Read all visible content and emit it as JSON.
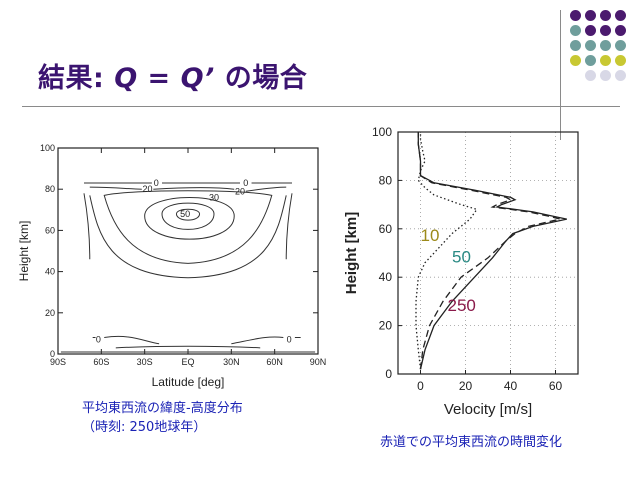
{
  "slide": {
    "title_prefix": "結果: ",
    "title_q1": "Q",
    "title_eq": " = ",
    "title_q2": "Q’",
    "title_suffix": " の場合",
    "caption_left_line1": "平均東西流の緯度-高度分布",
    "caption_left_line2": "（時刻: 250地球年）",
    "caption_right": "赤道での平均東西流の時間変化",
    "colors": {
      "title": "#3b1470",
      "caption": "#1a22b5",
      "dot_purple": "#4b1a6e",
      "dot_teal": "#6f9e9c",
      "dot_yellow": "#c8c832",
      "dot_light": "#d8d8e6",
      "label_10": "#9c8a1a",
      "label_50": "#2a8a84",
      "label_250": "#8a1a4a"
    }
  },
  "chart_data": [
    {
      "type": "contour",
      "xlabel": "Latitude [deg]",
      "ylabel": "Height [km]",
      "xlim": [
        -90,
        90
      ],
      "ylim": [
        0,
        100
      ],
      "x_ticks": [
        {
          "v": -90,
          "label": "90S"
        },
        {
          "v": -60,
          "label": "60S"
        },
        {
          "v": -30,
          "label": "30S"
        },
        {
          "v": 0,
          "label": "EQ"
        },
        {
          "v": 30,
          "label": "30N"
        },
        {
          "v": 60,
          "label": "60N"
        },
        {
          "v": 90,
          "label": "90N"
        }
      ],
      "y_ticks": [
        0,
        20,
        40,
        60,
        80,
        100
      ],
      "contour_labels": [
        {
          "text": "0",
          "lat": -22,
          "z": 83
        },
        {
          "text": "0",
          "lat": 40,
          "z": 83
        },
        {
          "text": "20",
          "lat": -28,
          "z": 80
        },
        {
          "text": "20",
          "lat": 36,
          "z": 79
        },
        {
          "text": "30",
          "lat": 18,
          "z": 76
        },
        {
          "text": "50",
          "lat": -2,
          "z": 68
        },
        {
          "text": "0",
          "lat": -62,
          "z": 7
        },
        {
          "text": "0",
          "lat": 70,
          "z": 7
        }
      ]
    },
    {
      "type": "line",
      "xlabel": "Velocity [m/s]",
      "ylabel": "Height [km]",
      "xlim": [
        -10,
        70
      ],
      "ylim": [
        0,
        100
      ],
      "x_ticks": [
        0,
        20,
        40,
        60
      ],
      "y_ticks": [
        0,
        20,
        40,
        60,
        80,
        100
      ],
      "series_labels": [
        {
          "text": "10",
          "x": 0,
          "y": 55
        },
        {
          "text": "50",
          "x": 14,
          "y": 46
        },
        {
          "text": "250",
          "x": 12,
          "y": 26
        }
      ],
      "series": [
        {
          "name": "10",
          "style": "dotted",
          "points": [
            [
              0,
              2
            ],
            [
              -1,
              10
            ],
            [
              -2,
              20
            ],
            [
              -2,
              30
            ],
            [
              -1,
              40
            ],
            [
              2,
              46
            ],
            [
              8,
              52
            ],
            [
              14,
              58
            ],
            [
              22,
              64
            ],
            [
              25,
              68
            ],
            [
              18,
              70
            ],
            [
              12,
              72
            ],
            [
              6,
              74
            ],
            [
              2,
              77
            ],
            [
              -1,
              80
            ],
            [
              0,
              84
            ],
            [
              2,
              88
            ],
            [
              1,
              92
            ],
            [
              0,
              97
            ],
            [
              0,
              100
            ]
          ]
        },
        {
          "name": "50",
          "style": "dashed",
          "points": [
            [
              0,
              2
            ],
            [
              1,
              10
            ],
            [
              4,
              20
            ],
            [
              10,
              30
            ],
            [
              18,
              40
            ],
            [
              30,
              48
            ],
            [
              38,
              55
            ],
            [
              42,
              58
            ],
            [
              48,
              61
            ],
            [
              62,
              64
            ],
            [
              58,
              65
            ],
            [
              48,
              67
            ],
            [
              40,
              68
            ],
            [
              32,
              69
            ],
            [
              34,
              70
            ],
            [
              40,
              72
            ],
            [
              38,
              73
            ],
            [
              22,
              76
            ],
            [
              5,
              79
            ],
            [
              0,
              82
            ],
            [
              0,
              88
            ],
            [
              -1,
              95
            ],
            [
              -1,
              100
            ]
          ]
        },
        {
          "name": "250",
          "style": "solid",
          "points": [
            [
              0,
              2
            ],
            [
              2,
              10
            ],
            [
              6,
              20
            ],
            [
              14,
              30
            ],
            [
              24,
              40
            ],
            [
              32,
              48
            ],
            [
              38,
              55
            ],
            [
              41,
              58
            ],
            [
              50,
              61
            ],
            [
              65,
              64
            ],
            [
              60,
              65
            ],
            [
              50,
              67
            ],
            [
              42,
              68
            ],
            [
              34,
              69
            ],
            [
              36,
              70
            ],
            [
              42,
              72
            ],
            [
              40,
              73
            ],
            [
              24,
              76
            ],
            [
              6,
              79
            ],
            [
              0,
              82
            ],
            [
              0,
              88
            ],
            [
              -1,
              95
            ],
            [
              -1,
              100
            ]
          ]
        }
      ]
    }
  ]
}
